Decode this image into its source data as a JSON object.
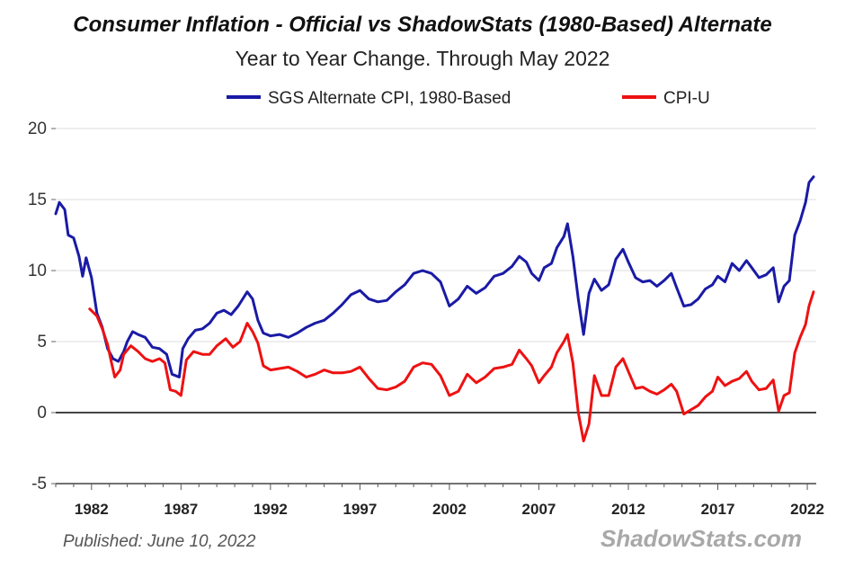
{
  "chart_data": {
    "type": "line",
    "title": "Consumer Inflation - Official vs ShadowStats (1980-Based) Alternate",
    "subtitle": "Year to Year Change. Through May 2022",
    "xlabel": "",
    "ylabel": "",
    "xlim": [
      1980.0,
      2022.5
    ],
    "ylim": [
      -5,
      20
    ],
    "y_ticks": [
      -5,
      0,
      5,
      10,
      15,
      20
    ],
    "x_ticks": [
      1982,
      1987,
      1992,
      1997,
      2002,
      2007,
      2012,
      2017,
      2022
    ],
    "grid": true,
    "legend": "top-center",
    "series": [
      {
        "name": "SGS Alternate CPI, 1980-Based",
        "color": "#1a1aa6",
        "points": [
          [
            1980.0,
            14.0
          ],
          [
            1980.2,
            14.8
          ],
          [
            1980.5,
            14.3
          ],
          [
            1980.7,
            12.5
          ],
          [
            1981.0,
            12.3
          ],
          [
            1981.3,
            11.0
          ],
          [
            1981.5,
            9.6
          ],
          [
            1981.7,
            10.9
          ],
          [
            1982.0,
            9.5
          ],
          [
            1982.3,
            7.0
          ],
          [
            1982.6,
            6.0
          ],
          [
            1982.9,
            4.5
          ],
          [
            1983.2,
            3.8
          ],
          [
            1983.5,
            3.6
          ],
          [
            1983.8,
            4.3
          ],
          [
            1984.0,
            5.0
          ],
          [
            1984.3,
            5.7
          ],
          [
            1984.6,
            5.5
          ],
          [
            1985.0,
            5.3
          ],
          [
            1985.4,
            4.6
          ],
          [
            1985.8,
            4.5
          ],
          [
            1986.2,
            4.1
          ],
          [
            1986.5,
            2.7
          ],
          [
            1986.9,
            2.5
          ],
          [
            1987.1,
            4.5
          ],
          [
            1987.4,
            5.2
          ],
          [
            1987.8,
            5.8
          ],
          [
            1988.2,
            5.9
          ],
          [
            1988.6,
            6.3
          ],
          [
            1989.0,
            7.0
          ],
          [
            1989.4,
            7.2
          ],
          [
            1989.8,
            6.9
          ],
          [
            1990.2,
            7.5
          ],
          [
            1990.7,
            8.5
          ],
          [
            1991.0,
            8.0
          ],
          [
            1991.3,
            6.5
          ],
          [
            1991.6,
            5.6
          ],
          [
            1992.0,
            5.4
          ],
          [
            1992.5,
            5.5
          ],
          [
            1993.0,
            5.3
          ],
          [
            1993.5,
            5.6
          ],
          [
            1994.0,
            6.0
          ],
          [
            1994.5,
            6.3
          ],
          [
            1995.0,
            6.5
          ],
          [
            1995.5,
            7.0
          ],
          [
            1996.0,
            7.6
          ],
          [
            1996.5,
            8.3
          ],
          [
            1997.0,
            8.6
          ],
          [
            1997.5,
            8.0
          ],
          [
            1998.0,
            7.8
          ],
          [
            1998.5,
            7.9
          ],
          [
            1999.0,
            8.5
          ],
          [
            1999.5,
            9.0
          ],
          [
            2000.0,
            9.8
          ],
          [
            2000.5,
            10.0
          ],
          [
            2001.0,
            9.8
          ],
          [
            2001.5,
            9.2
          ],
          [
            2002.0,
            7.5
          ],
          [
            2002.5,
            8.0
          ],
          [
            2003.0,
            8.9
          ],
          [
            2003.5,
            8.4
          ],
          [
            2004.0,
            8.8
          ],
          [
            2004.5,
            9.6
          ],
          [
            2005.0,
            9.8
          ],
          [
            2005.5,
            10.3
          ],
          [
            2005.9,
            11.0
          ],
          [
            2006.3,
            10.6
          ],
          [
            2006.6,
            9.8
          ],
          [
            2007.0,
            9.3
          ],
          [
            2007.3,
            10.2
          ],
          [
            2007.7,
            10.5
          ],
          [
            2008.0,
            11.6
          ],
          [
            2008.4,
            12.4
          ],
          [
            2008.6,
            13.3
          ],
          [
            2008.9,
            11.0
          ],
          [
            2009.2,
            8.0
          ],
          [
            2009.5,
            5.5
          ],
          [
            2009.8,
            8.4
          ],
          [
            2010.1,
            9.4
          ],
          [
            2010.5,
            8.6
          ],
          [
            2010.9,
            9.0
          ],
          [
            2011.3,
            10.8
          ],
          [
            2011.7,
            11.5
          ],
          [
            2012.0,
            10.6
          ],
          [
            2012.4,
            9.5
          ],
          [
            2012.8,
            9.2
          ],
          [
            2013.2,
            9.3
          ],
          [
            2013.6,
            8.9
          ],
          [
            2014.0,
            9.3
          ],
          [
            2014.4,
            9.8
          ],
          [
            2014.7,
            8.8
          ],
          [
            2015.1,
            7.5
          ],
          [
            2015.5,
            7.6
          ],
          [
            2015.9,
            8.0
          ],
          [
            2016.3,
            8.7
          ],
          [
            2016.7,
            9.0
          ],
          [
            2017.0,
            9.6
          ],
          [
            2017.4,
            9.2
          ],
          [
            2017.8,
            10.5
          ],
          [
            2018.2,
            10.0
          ],
          [
            2018.6,
            10.7
          ],
          [
            2018.9,
            10.2
          ],
          [
            2019.3,
            9.5
          ],
          [
            2019.7,
            9.7
          ],
          [
            2020.1,
            10.2
          ],
          [
            2020.4,
            7.8
          ],
          [
            2020.7,
            8.9
          ],
          [
            2021.0,
            9.3
          ],
          [
            2021.3,
            12.5
          ],
          [
            2021.6,
            13.5
          ],
          [
            2021.9,
            14.8
          ],
          [
            2022.1,
            16.2
          ],
          [
            2022.35,
            16.6
          ]
        ]
      },
      {
        "name": "CPI-U",
        "color": "#ee1111",
        "points": [
          [
            1981.9,
            7.3
          ],
          [
            1982.3,
            6.8
          ],
          [
            1982.6,
            5.9
          ],
          [
            1982.9,
            4.8
          ],
          [
            1983.1,
            3.6
          ],
          [
            1983.3,
            2.5
          ],
          [
            1983.6,
            3.0
          ],
          [
            1983.8,
            4.1
          ],
          [
            1984.2,
            4.7
          ],
          [
            1984.6,
            4.3
          ],
          [
            1985.0,
            3.8
          ],
          [
            1985.4,
            3.6
          ],
          [
            1985.8,
            3.8
          ],
          [
            1986.1,
            3.5
          ],
          [
            1986.4,
            1.6
          ],
          [
            1986.7,
            1.5
          ],
          [
            1987.0,
            1.2
          ],
          [
            1987.3,
            3.7
          ],
          [
            1987.7,
            4.3
          ],
          [
            1988.2,
            4.1
          ],
          [
            1988.6,
            4.1
          ],
          [
            1989.0,
            4.7
          ],
          [
            1989.5,
            5.2
          ],
          [
            1989.9,
            4.6
          ],
          [
            1990.3,
            5.0
          ],
          [
            1990.7,
            6.3
          ],
          [
            1991.0,
            5.7
          ],
          [
            1991.3,
            4.9
          ],
          [
            1991.6,
            3.3
          ],
          [
            1992.0,
            3.0
          ],
          [
            1992.5,
            3.1
          ],
          [
            1993.0,
            3.2
          ],
          [
            1993.5,
            2.9
          ],
          [
            1994.0,
            2.5
          ],
          [
            1994.5,
            2.7
          ],
          [
            1995.0,
            3.0
          ],
          [
            1995.5,
            2.8
          ],
          [
            1996.0,
            2.8
          ],
          [
            1996.5,
            2.9
          ],
          [
            1997.0,
            3.2
          ],
          [
            1997.5,
            2.4
          ],
          [
            1998.0,
            1.7
          ],
          [
            1998.5,
            1.6
          ],
          [
            1999.0,
            1.8
          ],
          [
            1999.5,
            2.2
          ],
          [
            2000.0,
            3.2
          ],
          [
            2000.5,
            3.5
          ],
          [
            2001.0,
            3.4
          ],
          [
            2001.5,
            2.6
          ],
          [
            2002.0,
            1.2
          ],
          [
            2002.5,
            1.5
          ],
          [
            2003.0,
            2.7
          ],
          [
            2003.5,
            2.1
          ],
          [
            2004.0,
            2.5
          ],
          [
            2004.5,
            3.1
          ],
          [
            2005.0,
            3.2
          ],
          [
            2005.5,
            3.4
          ],
          [
            2005.9,
            4.4
          ],
          [
            2006.3,
            3.8
          ],
          [
            2006.6,
            3.3
          ],
          [
            2007.0,
            2.1
          ],
          [
            2007.3,
            2.6
          ],
          [
            2007.7,
            3.2
          ],
          [
            2008.0,
            4.2
          ],
          [
            2008.4,
            5.0
          ],
          [
            2008.6,
            5.5
          ],
          [
            2008.9,
            3.5
          ],
          [
            2009.2,
            0.0
          ],
          [
            2009.5,
            -2.0
          ],
          [
            2009.8,
            -0.8
          ],
          [
            2010.1,
            2.6
          ],
          [
            2010.5,
            1.2
          ],
          [
            2010.9,
            1.2
          ],
          [
            2011.3,
            3.2
          ],
          [
            2011.7,
            3.8
          ],
          [
            2012.0,
            2.9
          ],
          [
            2012.4,
            1.7
          ],
          [
            2012.8,
            1.8
          ],
          [
            2013.2,
            1.5
          ],
          [
            2013.6,
            1.3
          ],
          [
            2014.0,
            1.6
          ],
          [
            2014.4,
            2.0
          ],
          [
            2014.7,
            1.5
          ],
          [
            2015.1,
            -0.1
          ],
          [
            2015.5,
            0.2
          ],
          [
            2015.9,
            0.5
          ],
          [
            2016.3,
            1.1
          ],
          [
            2016.7,
            1.5
          ],
          [
            2017.0,
            2.5
          ],
          [
            2017.4,
            1.9
          ],
          [
            2017.8,
            2.2
          ],
          [
            2018.2,
            2.4
          ],
          [
            2018.6,
            2.9
          ],
          [
            2018.9,
            2.2
          ],
          [
            2019.3,
            1.6
          ],
          [
            2019.7,
            1.7
          ],
          [
            2020.1,
            2.3
          ],
          [
            2020.4,
            0.1
          ],
          [
            2020.7,
            1.2
          ],
          [
            2021.0,
            1.4
          ],
          [
            2021.3,
            4.2
          ],
          [
            2021.6,
            5.3
          ],
          [
            2021.9,
            6.2
          ],
          [
            2022.1,
            7.5
          ],
          [
            2022.35,
            8.5
          ]
        ]
      }
    ],
    "annotations": [
      "Published: June 10, 2022",
      "ShadowStats.com"
    ]
  },
  "colors": {
    "grid": "#dedede",
    "zero_line": "#444444"
  }
}
